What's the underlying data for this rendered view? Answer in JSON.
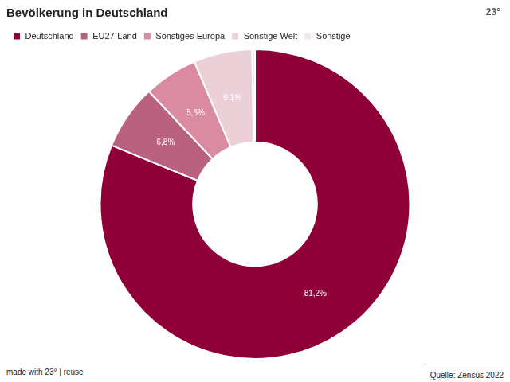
{
  "chart_data": {
    "type": "doughnut",
    "title": "Bevölkerung in Deutschland",
    "categories": [
      "Deutschland",
      "EU27-Land",
      "Sonstiges Europa",
      "Sonstige Welt",
      "Sonstige"
    ],
    "values": [
      81.2,
      6.8,
      5.6,
      6.1,
      0.3
    ],
    "value_labels": [
      "81,2%",
      "6,8%",
      "5,6%",
      "6,1%",
      null
    ],
    "colors": [
      "#8f0038",
      "#b9617f",
      "#da8aa1",
      "#ebd0d8",
      "#f3e6ea"
    ],
    "legend": "top-left",
    "data_labels": true,
    "credit": "made with 23° | reuse",
    "source": "Quelle: Zensus 2022",
    "logo": "23°"
  }
}
